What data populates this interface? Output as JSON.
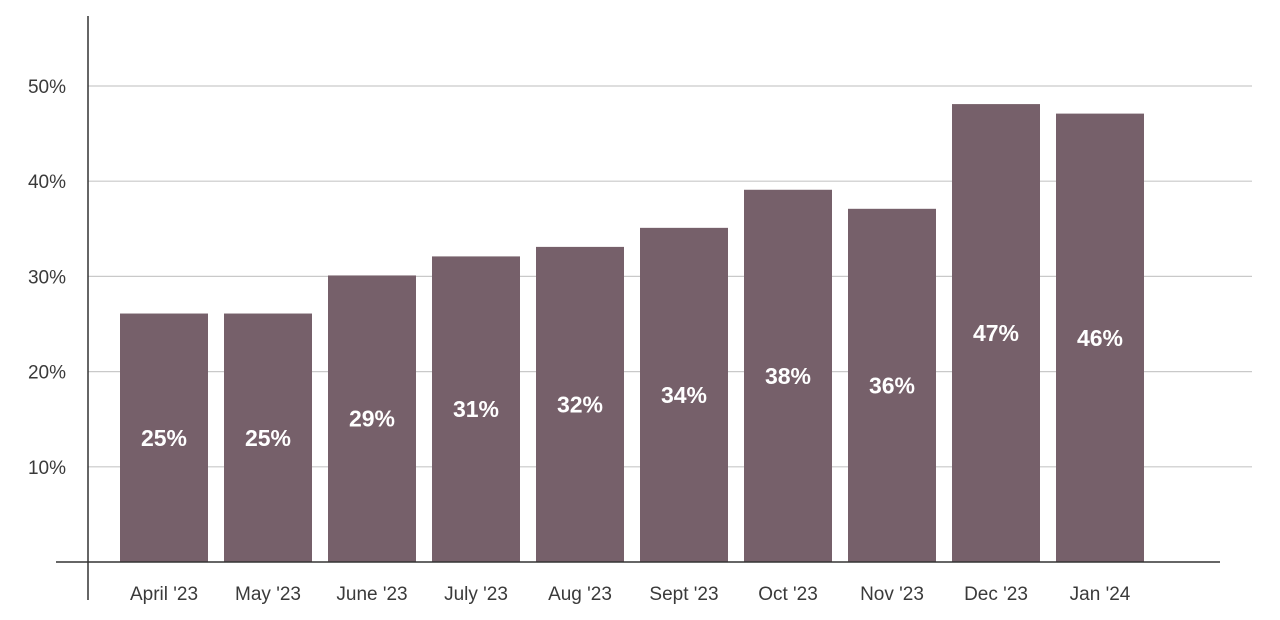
{
  "chart_data": {
    "type": "bar",
    "categories": [
      "April '23",
      "May '23",
      "June '23",
      "July '23",
      "Aug '23",
      "Sept '23",
      "Oct '23",
      "Nov '23",
      "Dec '23",
      "Jan '24"
    ],
    "values": [
      25,
      25,
      29,
      31,
      32,
      34,
      38,
      36,
      47,
      46
    ],
    "data_labels": [
      "25%",
      "25%",
      "29%",
      "31%",
      "32%",
      "34%",
      "38%",
      "36%",
      "47%",
      "46%"
    ],
    "yticks": [
      10,
      20,
      30,
      40,
      50
    ],
    "ytick_labels": [
      "10%",
      "20%",
      "30%",
      "40%",
      "50%"
    ],
    "ylim": [
      0,
      57
    ],
    "grid": true,
    "title": "",
    "xlabel": "",
    "ylabel": "",
    "bar_color": "#76606a",
    "label_color": "#ffffff"
  }
}
